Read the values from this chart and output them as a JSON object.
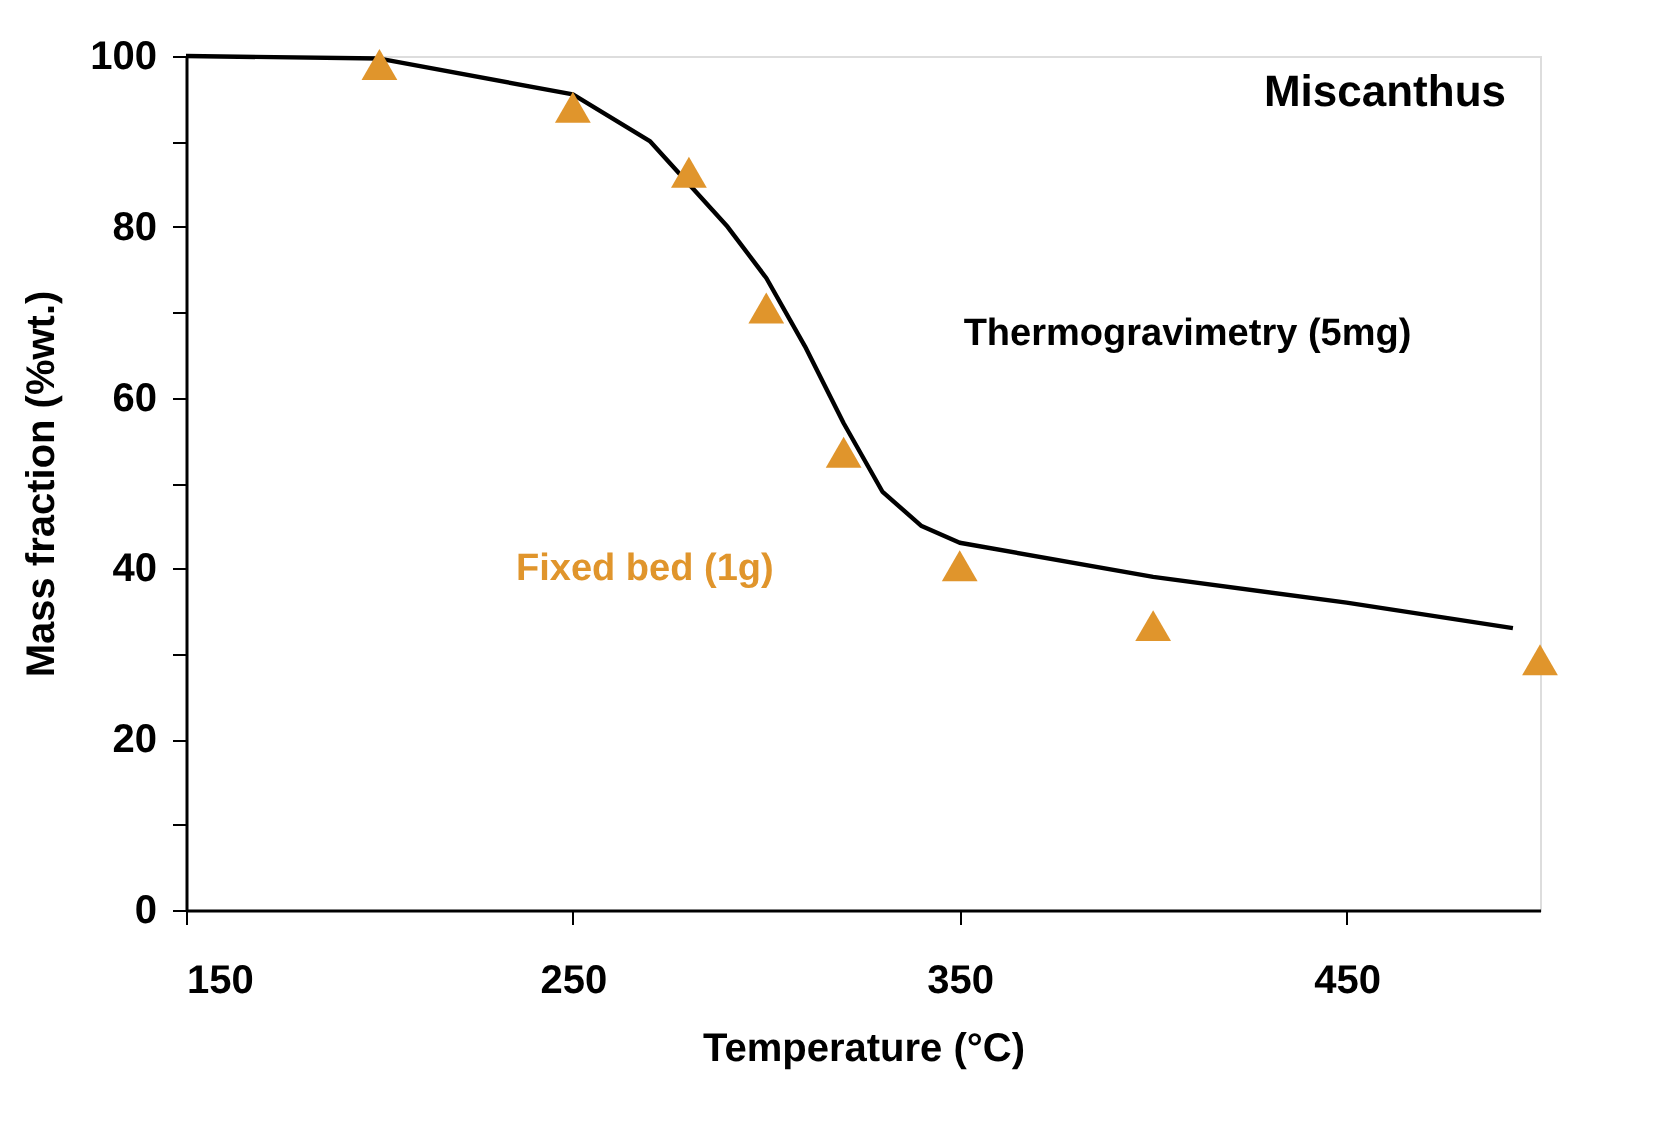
{
  "chart_data": {
    "type": "line",
    "xlabel": "Temperature (°C)",
    "ylabel": "Mass fraction (%wt.)",
    "xlim": [
      150,
      500
    ],
    "xticks": [
      150,
      250,
      350,
      450
    ],
    "ylim": [
      0,
      100
    ],
    "yticks": [
      0,
      {
        "value": 10,
        "label": null
      },
      20,
      {
        "value": 30,
        "label": null
      },
      40,
      {
        "value": 50,
        "label": null
      },
      60,
      {
        "value": 70,
        "label": null
      },
      80,
      {
        "value": 90,
        "label": null
      },
      100
    ],
    "grid": false,
    "annotations": [
      "Miscanthus"
    ],
    "series": [
      {
        "name": "Thermogravimetry (5mg)",
        "color": "#000000",
        "marker": "none",
        "line_style": "solid",
        "x": [
          150,
          200,
          250,
          270,
          290,
          300,
          310,
          320,
          330,
          340,
          350,
          400,
          450,
          493
        ],
        "values": [
          100,
          99.7,
          95.5,
          90,
          80,
          74,
          66,
          57,
          49,
          45,
          43,
          39,
          36,
          33
        ]
      },
      {
        "name": "Fixed bed (1g)",
        "type": "scatter",
        "color": "#e0952c",
        "marker": "triangle",
        "x": [
          200,
          250,
          280,
          300,
          320,
          350,
          400,
          500
        ],
        "values": [
          99,
          94,
          86.4,
          70.5,
          53.6,
          40.3,
          33.3,
          29.3
        ]
      }
    ]
  }
}
